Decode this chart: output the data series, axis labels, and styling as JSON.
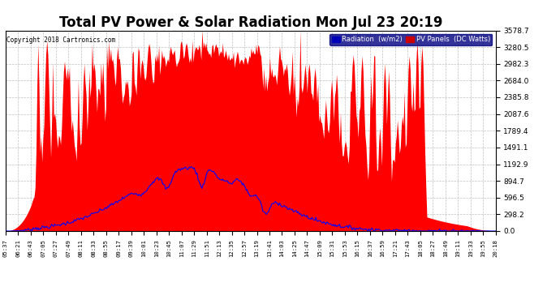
{
  "title": "Total PV Power & Solar Radiation Mon Jul 23 20:19",
  "copyright": "Copyright 2018 Cartronics.com",
  "ylabel_right_ticks": [
    0.0,
    298.2,
    596.5,
    894.7,
    1192.9,
    1491.1,
    1789.4,
    2087.6,
    2385.8,
    2684.0,
    2982.3,
    3280.5,
    3578.7
  ],
  "ymax": 3578.7,
  "ymin": 0.0,
  "legend_labels": [
    "Radiation  (w/m2)",
    "PV Panels  (DC Watts)"
  ],
  "legend_bg_colors": [
    "#0000bb",
    "#cc0000"
  ],
  "background_color": "#ffffff",
  "grid_color": "#b0b0b0",
  "title_fontsize": 12,
  "rad_scale": 1192.9,
  "x_tick_labels": [
    "05:37",
    "06:21",
    "06:43",
    "07:05",
    "07:27",
    "07:49",
    "08:11",
    "08:33",
    "08:55",
    "09:17",
    "09:39",
    "10:01",
    "10:23",
    "10:45",
    "11:07",
    "11:29",
    "11:51",
    "12:13",
    "12:35",
    "12:57",
    "13:19",
    "13:41",
    "14:03",
    "14:25",
    "14:47",
    "15:09",
    "15:31",
    "15:53",
    "16:15",
    "16:37",
    "16:59",
    "17:21",
    "17:43",
    "18:05",
    "18:27",
    "18:49",
    "19:11",
    "19:33",
    "19:55",
    "20:18"
  ]
}
